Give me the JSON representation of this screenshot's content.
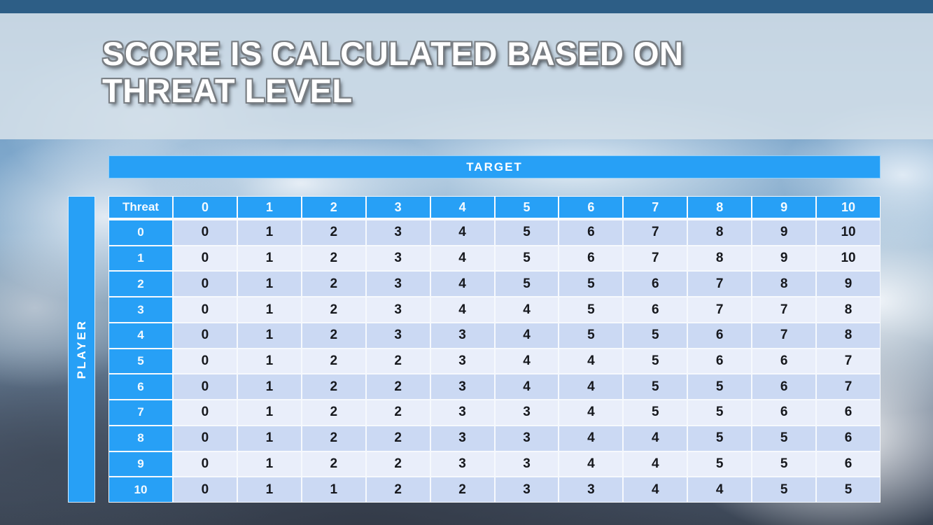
{
  "slide": {
    "title_line1": "SCORE IS CALCULATED BASED ON",
    "title_line2": "THREAT LEVEL"
  },
  "matrix": {
    "target_label": "TARGET",
    "player_label": "PLAYER",
    "corner_label": "Threat",
    "column_headers": [
      "0",
      "1",
      "2",
      "3",
      "4",
      "5",
      "6",
      "7",
      "8",
      "9",
      "10"
    ],
    "rows": [
      {
        "player": "0",
        "values": [
          "0",
          "1",
          "2",
          "3",
          "4",
          "5",
          "6",
          "7",
          "8",
          "9",
          "10"
        ]
      },
      {
        "player": "1",
        "values": [
          "0",
          "1",
          "2",
          "3",
          "4",
          "5",
          "6",
          "7",
          "8",
          "9",
          "10"
        ]
      },
      {
        "player": "2",
        "values": [
          "0",
          "1",
          "2",
          "3",
          "4",
          "5",
          "5",
          "6",
          "7",
          "8",
          "9"
        ]
      },
      {
        "player": "3",
        "values": [
          "0",
          "1",
          "2",
          "3",
          "4",
          "4",
          "5",
          "6",
          "7",
          "7",
          "8"
        ]
      },
      {
        "player": "4",
        "values": [
          "0",
          "1",
          "2",
          "3",
          "3",
          "4",
          "5",
          "5",
          "6",
          "7",
          "8"
        ]
      },
      {
        "player": "5",
        "values": [
          "0",
          "1",
          "2",
          "2",
          "3",
          "4",
          "4",
          "5",
          "6",
          "6",
          "7"
        ]
      },
      {
        "player": "6",
        "values": [
          "0",
          "1",
          "2",
          "2",
          "3",
          "4",
          "4",
          "5",
          "5",
          "6",
          "7"
        ]
      },
      {
        "player": "7",
        "values": [
          "0",
          "1",
          "2",
          "2",
          "3",
          "3",
          "4",
          "5",
          "5",
          "6",
          "6"
        ]
      },
      {
        "player": "8",
        "values": [
          "0",
          "1",
          "2",
          "2",
          "3",
          "3",
          "4",
          "4",
          "5",
          "5",
          "6"
        ]
      },
      {
        "player": "9",
        "values": [
          "0",
          "1",
          "2",
          "2",
          "3",
          "3",
          "4",
          "4",
          "5",
          "5",
          "6"
        ]
      },
      {
        "player": "10",
        "values": [
          "0",
          "1",
          "1",
          "2",
          "2",
          "3",
          "3",
          "4",
          "4",
          "5",
          "5"
        ]
      }
    ]
  },
  "colors": {
    "accent_blue": "#27a0f6",
    "top_bar": "#2d5e86",
    "title_band": "#d5e0e9",
    "band_dark": "#cbd9f3",
    "band_light": "#e9eefa",
    "cell_text": "#16181d",
    "header_text": "#ffffff"
  }
}
